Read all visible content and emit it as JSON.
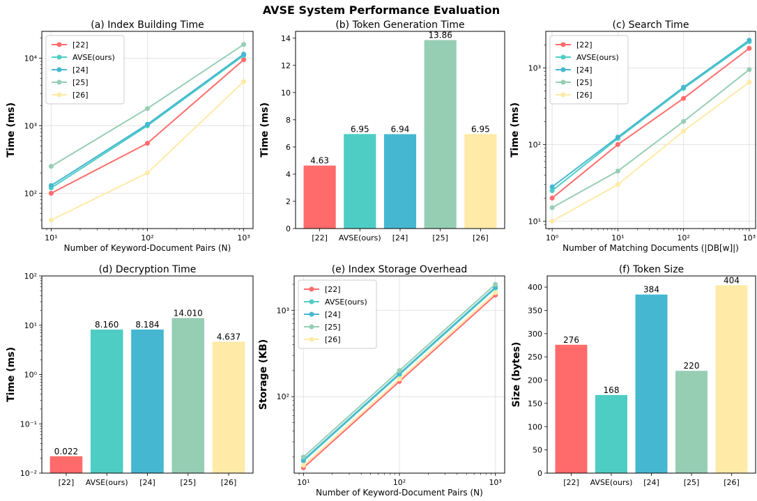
{
  "figure": {
    "title": "AVSE System Performance Evaluation"
  },
  "colors": {
    "[22]": "#ff6b6b",
    "AVSE(ours)": "#4ecdc4",
    "[24]": "#45b7d1",
    "[25]": "#96ceb4",
    "[26]": "#ffeaa7"
  },
  "chart_data": [
    {
      "id": "a",
      "type": "line",
      "title": "(a) Index Building Time",
      "xlabel": "Number of Keyword-Document Pairs (N)",
      "ylabel": "Time (ms)",
      "xscale": "log",
      "yscale": "log",
      "xlim": [
        8,
        1250
      ],
      "ylim": [
        30,
        25000
      ],
      "xticks": [
        10,
        100,
        1000
      ],
      "xtick_labels": [
        "10¹",
        "10²",
        "10³"
      ],
      "yticks": [
        100,
        1000,
        10000
      ],
      "ytick_labels": [
        "10²",
        "10³",
        "10⁴"
      ],
      "grid": true,
      "legend": "upper left",
      "x": [
        10,
        100,
        1000
      ],
      "series": [
        {
          "name": "[22]",
          "values": [
            100,
            550,
            9500
          ]
        },
        {
          "name": "AVSE(ours)",
          "values": [
            120,
            1000,
            11000
          ]
        },
        {
          "name": "[24]",
          "values": [
            130,
            1050,
            11500
          ]
        },
        {
          "name": "[25]",
          "values": [
            250,
            1800,
            16000
          ]
        },
        {
          "name": "[26]",
          "values": [
            40,
            200,
            4500
          ]
        }
      ]
    },
    {
      "id": "b",
      "type": "bar",
      "title": "(b) Token Generation Time",
      "xlabel": "",
      "ylabel": "Time (ms)",
      "yscale": "linear",
      "ylim": [
        0,
        14.5
      ],
      "yticks": [
        0,
        2,
        4,
        6,
        8,
        10,
        12,
        14
      ],
      "ytick_labels": [
        "0",
        "2",
        "4",
        "6",
        "8",
        "10",
        "12",
        "14"
      ],
      "categories": [
        "[22]",
        "AVSE(ours)",
        "[24]",
        "[25]",
        "[26]"
      ],
      "values": [
        4.63,
        6.95,
        6.94,
        13.86,
        6.95
      ],
      "value_labels": [
        "4.63",
        "6.95",
        "6.94",
        "13.86",
        "6.95"
      ]
    },
    {
      "id": "c",
      "type": "line",
      "title": "(c) Search Time",
      "xlabel": "Number of Matching Documents (|DB[w]|)",
      "ylabel": "Time (ms)",
      "xscale": "log",
      "yscale": "log",
      "xlim": [
        0.8,
        1250
      ],
      "ylim": [
        8,
        3000
      ],
      "xticks": [
        1,
        10,
        100,
        1000
      ],
      "xtick_labels": [
        "10⁰",
        "10¹",
        "10²",
        "10³"
      ],
      "yticks": [
        10,
        100,
        1000
      ],
      "ytick_labels": [
        "10¹",
        "10²",
        "10³"
      ],
      "grid": true,
      "legend": "upper left",
      "x": [
        1,
        10,
        100,
        1000
      ],
      "series": [
        {
          "name": "[22]",
          "values": [
            20,
            100,
            400,
            1800
          ]
        },
        {
          "name": "AVSE(ours)",
          "values": [
            25,
            120,
            540,
            2200
          ]
        },
        {
          "name": "[24]",
          "values": [
            28,
            125,
            560,
            2300
          ]
        },
        {
          "name": "[25]",
          "values": [
            15,
            45,
            200,
            950
          ]
        },
        {
          "name": "[26]",
          "values": [
            10,
            30,
            150,
            650
          ]
        }
      ]
    },
    {
      "id": "d",
      "type": "bar",
      "title": "(d) Decryption Time",
      "xlabel": "",
      "ylabel": "Time (ms)",
      "yscale": "log",
      "ylim": [
        0.01,
        100
      ],
      "yticks": [
        0.01,
        0.1,
        1,
        10,
        100
      ],
      "ytick_labels": [
        "10⁻²",
        "10⁻¹",
        "10⁰",
        "10¹",
        "10²"
      ],
      "categories": [
        "[22]",
        "AVSE(ours)",
        "[24]",
        "[25]",
        "[26]"
      ],
      "values": [
        0.022,
        8.16,
        8.184,
        14.01,
        4.637
      ],
      "value_labels": [
        "0.022",
        "8.160",
        "8.184",
        "14.010",
        "4.637"
      ]
    },
    {
      "id": "e",
      "type": "line",
      "title": "(e) Index Storage Overhead",
      "xlabel": "Number of Keyword-Document Pairs (N)",
      "ylabel": "Storage (KB)",
      "xscale": "log",
      "yscale": "log",
      "xlim": [
        8,
        1250
      ],
      "ylim": [
        13,
        2500
      ],
      "xticks": [
        10,
        100,
        1000
      ],
      "xtick_labels": [
        "10¹",
        "10²",
        "10³"
      ],
      "yticks": [
        100,
        1000
      ],
      "ytick_labels": [
        "10²",
        "10³"
      ],
      "grid": true,
      "legend": "upper left",
      "x": [
        10,
        100,
        1000
      ],
      "series": [
        {
          "name": "[22]",
          "values": [
            15,
            150,
            1500
          ]
        },
        {
          "name": "AVSE(ours)",
          "values": [
            18,
            180,
            1800
          ]
        },
        {
          "name": "[24]",
          "values": [
            18.5,
            185,
            1850
          ]
        },
        {
          "name": "[25]",
          "values": [
            20,
            200,
            2000
          ]
        },
        {
          "name": "[26]",
          "values": [
            16,
            160,
            1600
          ]
        }
      ]
    },
    {
      "id": "f",
      "type": "bar",
      "title": "(f) Token Size",
      "xlabel": "",
      "ylabel": "Size (bytes)",
      "yscale": "linear",
      "ylim": [
        0,
        424
      ],
      "yticks": [
        0,
        50,
        100,
        150,
        200,
        250,
        300,
        350,
        400
      ],
      "ytick_labels": [
        "0",
        "50",
        "100",
        "150",
        "200",
        "250",
        "300",
        "350",
        "400"
      ],
      "categories": [
        "[22]",
        "AVSE(ours)",
        "[24]",
        "[25]",
        "[26]"
      ],
      "values": [
        276,
        168,
        384,
        220,
        404
      ],
      "value_labels": [
        "276",
        "168",
        "384",
        "220",
        "404"
      ]
    }
  ]
}
